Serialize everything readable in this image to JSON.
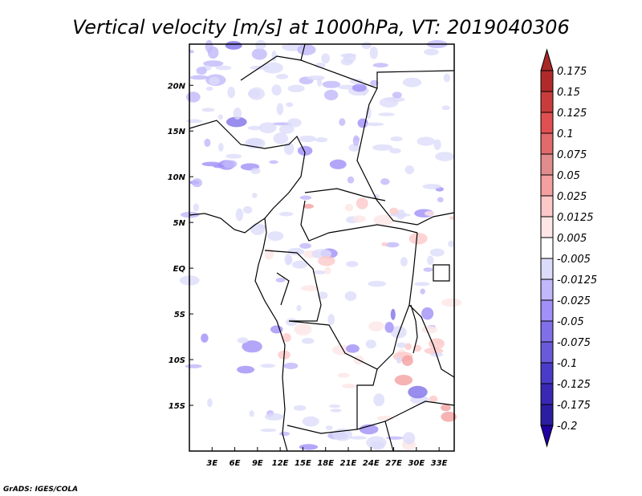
{
  "chart_data": {
    "type": "heatmap",
    "title": "Vertical velocity [m/s] at 1000hPa, VT: 2019040306",
    "lat_ticks": [
      "20N",
      "15N",
      "10N",
      "5N",
      "EQ",
      "5S",
      "10S",
      "15S"
    ],
    "lat_values": [
      20,
      15,
      10,
      5,
      0,
      -5,
      -10,
      -15
    ],
    "lon_ticks": [
      "3E",
      "6E",
      "9E",
      "12E",
      "15E",
      "18E",
      "21E",
      "24E",
      "27E",
      "30E",
      "33E"
    ],
    "lon_values": [
      3,
      6,
      9,
      12,
      15,
      18,
      21,
      24,
      27,
      30,
      33
    ],
    "xlim": [
      0,
      35
    ],
    "ylim": [
      -20,
      24.5
    ],
    "colorbar": {
      "labels": [
        "0.175",
        "0.15",
        "0.125",
        "0.1",
        "0.075",
        "0.05",
        "0.025",
        "0.0125",
        "0.005",
        "-0.005",
        "-0.0125",
        "-0.025",
        "-0.05",
        "-0.075",
        "-0.1",
        "-0.125",
        "-0.175",
        "-0.2"
      ],
      "colors": [
        "#b02a2a",
        "#c83c3c",
        "#e05050",
        "#e06a6a",
        "#e08c8c",
        "#f4a0a0",
        "#fcc8c8",
        "#fde6e6",
        "#ffffff",
        "#dcdcfa",
        "#c0b8fa",
        "#a090f8",
        "#8070e8",
        "#6a5ad8",
        "#4a3cc8",
        "#3a28b4",
        "#2c1ea0"
      ],
      "top_arrow_color": "#a82828",
      "bottom_arrow_color": "#2000a0"
    },
    "credit": "GrADS: IGES/COLA"
  }
}
